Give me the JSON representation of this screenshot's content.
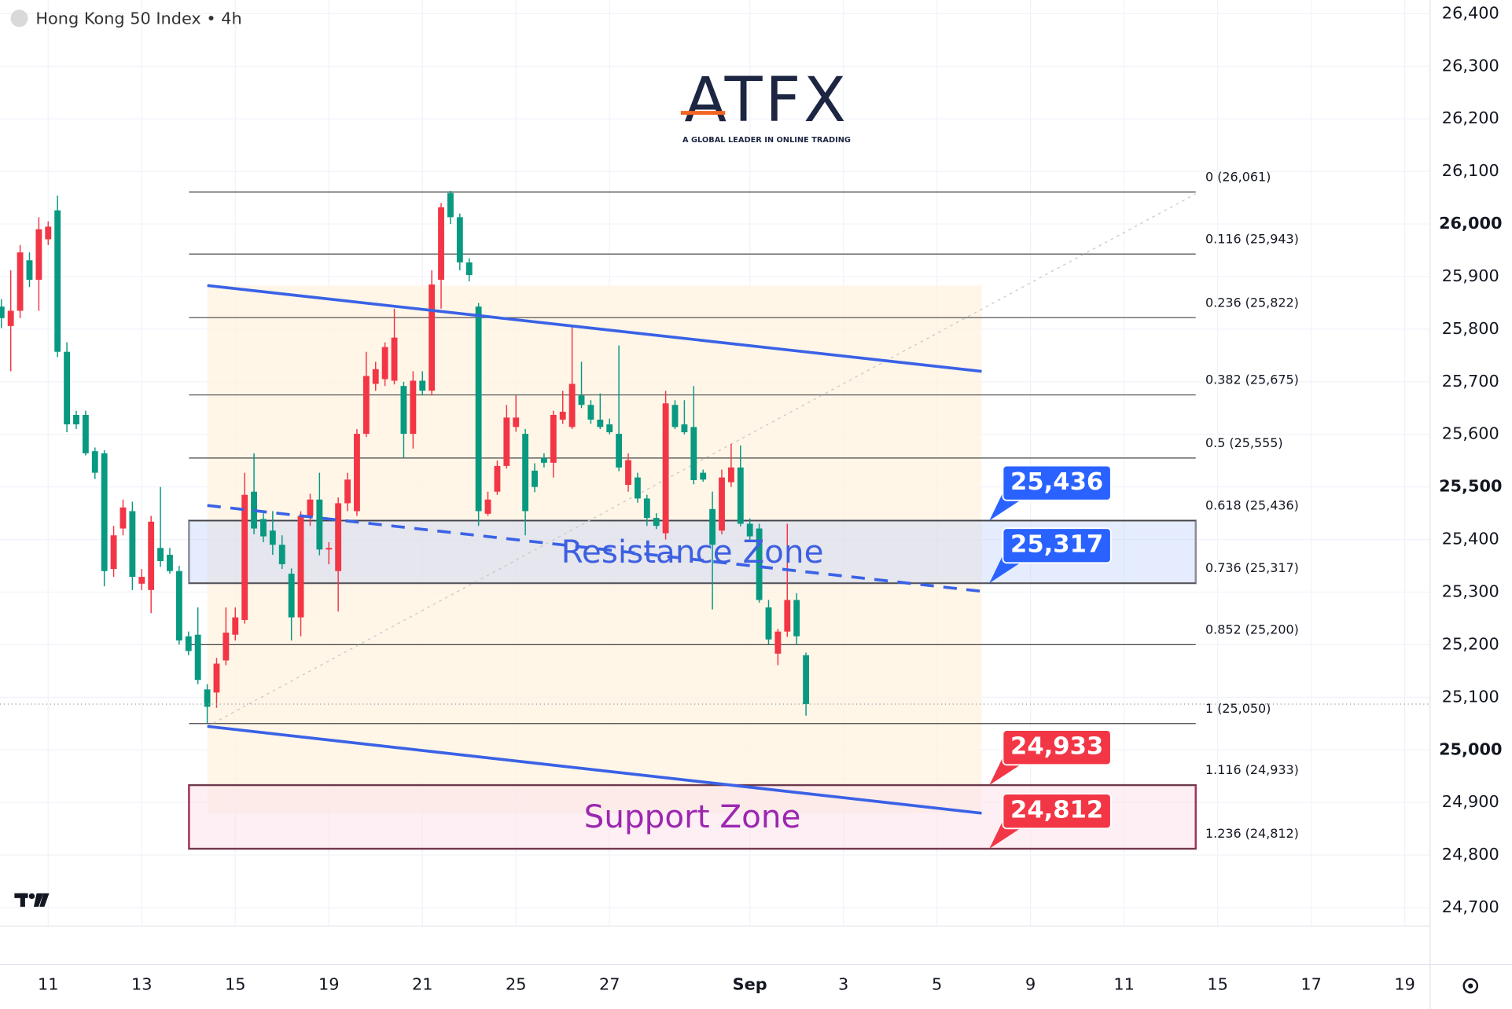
{
  "chart_data": {
    "type": "candlestick",
    "title": "Hong Kong 50 Index • 4h",
    "logo": {
      "text": "ATFX",
      "tagline": "A GLOBAL LEADER IN ONLINE TRADING"
    },
    "up_color": "#f23645",
    "down_color": "#089981",
    "grid": true,
    "x": [
      0,
      1,
      2,
      3,
      4,
      5,
      6,
      7,
      8,
      9,
      10,
      11,
      12,
      13,
      14,
      15,
      16,
      17,
      18,
      19,
      20,
      21,
      22,
      23,
      24,
      25,
      26,
      27,
      28,
      29,
      30,
      31,
      32,
      33,
      34,
      35,
      36,
      37,
      38,
      39,
      40,
      41,
      42,
      43,
      44,
      45,
      46,
      47,
      48,
      49,
      50,
      51,
      52,
      53,
      54,
      55,
      56,
      57,
      58,
      59,
      60,
      61,
      62,
      63,
      64,
      65,
      66,
      67,
      68,
      69,
      70,
      71,
      72,
      73,
      74,
      75,
      76,
      77,
      78,
      79,
      80,
      81,
      82,
      83,
      84,
      85,
      86
    ],
    "open": [
      25843,
      25806,
      25835,
      25931,
      25894,
      25971,
      26026,
      25757,
      25637,
      25637,
      25568,
      25564,
      25344,
      25421,
      25454,
      25316,
      25304,
      25384,
      25371,
      25340,
      25216,
      25219,
      25115,
      25109,
      25170,
      25219,
      25247,
      25491,
      25439,
      25417,
      25390,
      25335,
      25252,
      25445,
      25476,
      25381,
      25340,
      25469,
      25454,
      25601,
      25696,
      25705,
      25702,
      25692,
      25601,
      25702,
      25683,
      25894,
      26059,
      26013,
      25927,
      25843,
      25449,
      25491,
      25540,
      25614,
      25601,
      25531,
      25555,
      25546,
      25628,
      25614,
      25674,
      25656,
      25628,
      25619,
      25601,
      25504,
      25518,
      25478,
      25441,
      25412,
      25656,
      25619,
      25614,
      25527,
      25458,
      25417,
      25509,
      25537,
      25430,
      25421,
      25271,
      25183,
      25225,
      25285,
      25180
    ],
    "high": [
      25857,
      25912,
      25960,
      25946,
      26013,
      26005,
      26054,
      25775,
      25645,
      25645,
      25575,
      25570,
      25426,
      25476,
      25472,
      25344,
      25445,
      25500,
      25384,
      25350,
      25225,
      25271,
      25125,
      25175,
      25271,
      25271,
      25527,
      25564,
      25450,
      25454,
      25408,
      25345,
      25454,
      25487,
      25527,
      25395,
      25480,
      25527,
      25610,
      25757,
      25738,
      25775,
      25839,
      25700,
      25720,
      25720,
      25912,
      26040,
      26063,
      26020,
      25935,
      25850,
      25491,
      25550,
      25656,
      25674,
      25610,
      25545,
      25564,
      25645,
      25683,
      25806,
      25738,
      25665,
      25678,
      25630,
      25769,
      25564,
      25527,
      25485,
      25450,
      25683,
      25665,
      25665,
      25692,
      25533,
      25491,
      25533,
      25582,
      25579,
      25440,
      25430,
      25285,
      25230,
      25430,
      25298,
      25185
    ],
    "low": [
      25802,
      25720,
      25821,
      25880,
      25835,
      25960,
      25747,
      25604,
      25610,
      25560,
      25515,
      25311,
      25329,
      25408,
      25304,
      25304,
      25260,
      25348,
      25335,
      25200,
      25180,
      25125,
      25051,
      25080,
      25161,
      25208,
      25240,
      25410,
      25395,
      25371,
      25344,
      25208,
      25216,
      25426,
      25370,
      25353,
      25263,
      25454,
      25445,
      25595,
      25683,
      25692,
      25695,
      25555,
      25573,
      25674,
      25674,
      25839,
      26000,
      25912,
      25891,
      25426,
      25445,
      25485,
      25535,
      25605,
      25408,
      25490,
      25537,
      25518,
      25620,
      25610,
      25650,
      25620,
      25610,
      25600,
      25530,
      25491,
      25470,
      25426,
      25420,
      25400,
      25610,
      25600,
      25505,
      25510,
      25267,
      25410,
      25500,
      25425,
      25400,
      25280,
      25200,
      25161,
      25215,
      25200,
      25065
    ],
    "close": [
      25821,
      25835,
      25946,
      25894,
      25990,
      25995,
      25757,
      25619,
      25619,
      25564,
      25527,
      25340,
      25408,
      25461,
      25329,
      25329,
      25434,
      25359,
      25340,
      25208,
      25188,
      25133,
      25082,
      25164,
      25223,
      25252,
      25485,
      25421,
      25406,
      25390,
      25353,
      25252,
      25445,
      25476,
      25381,
      25384,
      25469,
      25514,
      25601,
      25711,
      25724,
      25766,
      25784,
      25601,
      25702,
      25683,
      25885,
      26032,
      26013,
      25927,
      25903,
      25454,
      25476,
      25540,
      25632,
      25632,
      25454,
      25500,
      25546,
      25637,
      25643,
      25696,
      25656,
      25628,
      25614,
      25604,
      25537,
      25551,
      25478,
      25441,
      25426,
      25659,
      25614,
      25604,
      25513,
      25514,
      25390,
      25518,
      25537,
      25430,
      25406,
      25285,
      25210,
      25225,
      25285,
      25216,
      25087
    ],
    "xlim": [
      -0.15,
      152.7
    ],
    "xticks": [
      {
        "value": 5,
        "label": "11"
      },
      {
        "value": 15,
        "label": "13"
      },
      {
        "value": 25,
        "label": "15"
      },
      {
        "value": 35,
        "label": "19"
      },
      {
        "value": 45,
        "label": "21"
      },
      {
        "value": 55,
        "label": "25"
      },
      {
        "value": 65,
        "label": "27"
      },
      {
        "value": 80,
        "label": "Sep"
      },
      {
        "value": 90,
        "label": "3"
      },
      {
        "value": 100,
        "label": "5"
      },
      {
        "value": 110,
        "label": "9"
      },
      {
        "value": 120,
        "label": "11"
      },
      {
        "value": 130,
        "label": "15"
      },
      {
        "value": 140,
        "label": "17"
      },
      {
        "value": 150,
        "label": "19"
      }
    ],
    "ylim": [
      24665,
      26426
    ],
    "yticks": [
      {
        "value": 24700,
        "label": "24,700"
      },
      {
        "value": 24800,
        "label": "24,800"
      },
      {
        "value": 24900,
        "label": "24,900"
      },
      {
        "value": 25000,
        "label": "25,000"
      },
      {
        "value": 25100,
        "label": "25,100"
      },
      {
        "value": 25200,
        "label": "25,200"
      },
      {
        "value": 25300,
        "label": "25,300"
      },
      {
        "value": 25400,
        "label": "25,400"
      },
      {
        "value": 25500,
        "label": "25,500"
      },
      {
        "value": 25600,
        "label": "25,600"
      },
      {
        "value": 25700,
        "label": "25,700"
      },
      {
        "value": 25800,
        "label": "25,800"
      },
      {
        "value": 25900,
        "label": "25,900"
      },
      {
        "value": 26000,
        "label": "26,000"
      },
      {
        "value": 26100,
        "label": "26,100"
      },
      {
        "value": 26200,
        "label": "26,200"
      },
      {
        "value": 26300,
        "label": "26,300"
      },
      {
        "value": 26400,
        "label": "26,400"
      }
    ],
    "fib_levels": [
      {
        "value": 26061,
        "label": "0 (26,061)"
      },
      {
        "value": 25943,
        "label": "0.116 (25,943)"
      },
      {
        "value": 25822,
        "label": "0.236 (25,822)"
      },
      {
        "value": 25675,
        "label": "0.382 (25,675)"
      },
      {
        "value": 25555,
        "label": "0.5 (25,555)"
      },
      {
        "value": 25436,
        "label": "0.618 (25,436)"
      },
      {
        "value": 25317,
        "label": "0.736 (25,317)"
      },
      {
        "value": 25200,
        "label": "0.852 (25,200)"
      },
      {
        "value": 25050,
        "label": "1 (25,050)"
      },
      {
        "value": 24933,
        "label": "1.116 (24,933)"
      },
      {
        "value": 24812,
        "label": "1.236 (24,812)"
      }
    ],
    "zones": [
      {
        "label": "Resistance Zone",
        "from": 25317,
        "to": 25436,
        "color": "#3d5fe0",
        "fill": "rgba(180,200,250,0.35)",
        "stroke": "#8a8a9a"
      },
      {
        "label": "Support Zone",
        "from": 24812,
        "to": 24933,
        "color": "#9c27b0",
        "fill": "rgba(252,225,235,0.55)",
        "stroke": "#a3305a"
      }
    ],
    "callouts": [
      {
        "value": 25436,
        "label": "25,436",
        "color": "#2962ff"
      },
      {
        "value": 25317,
        "label": "25,317",
        "color": "#2962ff"
      },
      {
        "value": 24933,
        "label": "24,933",
        "color": "#f23645"
      },
      {
        "value": 24812,
        "label": "24,812",
        "color": "#f23645"
      }
    ]
  }
}
